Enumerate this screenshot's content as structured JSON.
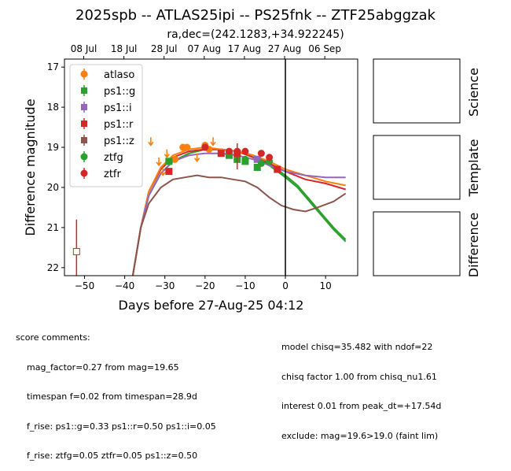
{
  "chart_data": {
    "type": "scatter",
    "title": "2025spb -- ATLAS25ipi -- PS25fnk -- ZTF25abggzak",
    "subtitle": "ra,dec=(242.1283,+34.922245)",
    "xlabel": "Days before 27-Aug-25 04:12",
    "ylabel": "Difference magnitude",
    "xlim": [
      -55,
      18
    ],
    "ylim": [
      22.2,
      16.8
    ],
    "y_inverted": true,
    "xticks": [
      -50,
      -40,
      -30,
      -20,
      -10,
      0,
      10
    ],
    "yticks": [
      17,
      18,
      19,
      20,
      21,
      22
    ],
    "top_axis_ticks": [
      {
        "x": -50.2,
        "label": "08 Jul"
      },
      {
        "x": -40.2,
        "label": "18 Jul"
      },
      {
        "x": -30.2,
        "label": "28 Jul"
      },
      {
        "x": -20.2,
        "label": "07 Aug"
      },
      {
        "x": -10.2,
        "label": "17 Aug"
      },
      {
        "x": -0.2,
        "label": "27 Aug"
      },
      {
        "x": 9.8,
        "label": "06 Sep"
      }
    ],
    "vline_x": 0,
    "grid": false,
    "legend_position": "upper-left",
    "series": [
      {
        "name": "atlaso",
        "color": "#ff7f0e",
        "marker": "circle",
        "points": [
          [
            -25.5,
            19.0
          ],
          [
            -24.5,
            19.0
          ],
          [
            -27.5,
            19.3
          ],
          [
            -20,
            18.95
          ],
          [
            -19,
            19.05
          ],
          [
            -14,
            19.1
          ]
        ],
        "upper_limits": [
          [
            -33.5,
            18.85
          ],
          [
            -31.5,
            19.35
          ],
          [
            -30.5,
            19.6
          ],
          [
            -29.5,
            19.15
          ],
          [
            -22,
            19.25
          ],
          [
            -18,
            18.85
          ]
        ]
      },
      {
        "name": "ps1::g",
        "color": "#2ca02c",
        "marker": "square",
        "points": [
          [
            -29,
            19.35
          ],
          [
            -14,
            19.2
          ],
          [
            -12,
            19.3
          ],
          [
            -10,
            19.35
          ],
          [
            -7,
            19.5
          ]
        ]
      },
      {
        "name": "ps1::i",
        "color": "#9467bd",
        "marker": "square",
        "points": [
          [
            -7,
            19.3
          ]
        ]
      },
      {
        "name": "ps1::r",
        "color": "#d62728",
        "marker": "square",
        "points": [
          [
            -29,
            19.6
          ],
          [
            -16,
            19.15
          ],
          [
            -12,
            19.15
          ],
          [
            -2,
            19.55
          ]
        ],
        "open_points": [
          [
            -52,
            21.6
          ]
        ],
        "error_bars": [
          [
            -52,
            20.8,
            22.2
          ],
          [
            -12,
            18.9,
            19.55
          ]
        ]
      },
      {
        "name": "ps1::z",
        "color": "#8c564b",
        "marker": "square",
        "points": []
      },
      {
        "name": "ztfg",
        "color": "#2ca02c",
        "marker": "circle",
        "points": [
          [
            -20,
            19.0
          ],
          [
            -14,
            19.15
          ],
          [
            -10,
            19.3
          ],
          [
            -6,
            19.4
          ],
          [
            -4,
            19.35
          ]
        ]
      },
      {
        "name": "ztfr",
        "color": "#d62728",
        "marker": "circle",
        "points": [
          [
            -20,
            19.0
          ],
          [
            -14,
            19.1
          ],
          [
            -12,
            19.1
          ],
          [
            -10,
            19.1
          ],
          [
            -6,
            19.15
          ],
          [
            -4,
            19.25
          ]
        ]
      }
    ],
    "model_curves": [
      {
        "color": "#2ca02c",
        "points": [
          [
            -38,
            22.2
          ],
          [
            -36,
            21.0
          ],
          [
            -34,
            20.2
          ],
          [
            -31,
            19.65
          ],
          [
            -28,
            19.35
          ],
          [
            -24,
            19.15
          ],
          [
            -20,
            19.05
          ],
          [
            -16,
            19.05
          ],
          [
            -12,
            19.1
          ],
          [
            -8,
            19.25
          ],
          [
            -4,
            19.45
          ],
          [
            0,
            19.75
          ],
          [
            3,
            20.0
          ],
          [
            6,
            20.35
          ],
          [
            9,
            20.7
          ],
          [
            12,
            21.05
          ],
          [
            15,
            21.35
          ]
        ]
      },
      {
        "color": "#2ca02c",
        "points": [
          [
            -38,
            22.2
          ],
          [
            -36,
            21.0
          ],
          [
            -34,
            20.2
          ],
          [
            -31,
            19.65
          ],
          [
            -28,
            19.35
          ],
          [
            -24,
            19.15
          ],
          [
            -20,
            19.05
          ],
          [
            -16,
            19.05
          ],
          [
            -12,
            19.1
          ],
          [
            -8,
            19.2
          ],
          [
            -4,
            19.4
          ],
          [
            0,
            19.7
          ],
          [
            3,
            19.95
          ],
          [
            6,
            20.3
          ],
          [
            9,
            20.65
          ],
          [
            12,
            21.0
          ],
          [
            15,
            21.3
          ]
        ]
      },
      {
        "color": "#d62728",
        "points": [
          [
            -38,
            22.2
          ],
          [
            -36,
            21.0
          ],
          [
            -34,
            20.1
          ],
          [
            -31,
            19.55
          ],
          [
            -28,
            19.25
          ],
          [
            -24,
            19.1
          ],
          [
            -20,
            19.05
          ],
          [
            -16,
            19.05
          ],
          [
            -12,
            19.1
          ],
          [
            -8,
            19.25
          ],
          [
            -4,
            19.4
          ],
          [
            0,
            19.6
          ],
          [
            5,
            19.8
          ],
          [
            10,
            19.9
          ],
          [
            15,
            20.05
          ]
        ]
      },
      {
        "color": "#ff7f0e",
        "points": [
          [
            -38,
            22.2
          ],
          [
            -36,
            21.0
          ],
          [
            -34,
            20.1
          ],
          [
            -31,
            19.5
          ],
          [
            -28,
            19.2
          ],
          [
            -24,
            19.05
          ],
          [
            -20,
            19.0
          ],
          [
            -16,
            19.05
          ],
          [
            -12,
            19.1
          ],
          [
            -8,
            19.2
          ],
          [
            -4,
            19.35
          ],
          [
            0,
            19.55
          ],
          [
            5,
            19.7
          ],
          [
            10,
            19.85
          ],
          [
            15,
            19.95
          ]
        ]
      },
      {
        "color": "#9467bd",
        "points": [
          [
            -38,
            22.2
          ],
          [
            -36,
            21.0
          ],
          [
            -34,
            20.2
          ],
          [
            -31,
            19.65
          ],
          [
            -28,
            19.35
          ],
          [
            -24,
            19.2
          ],
          [
            -20,
            19.15
          ],
          [
            -16,
            19.15
          ],
          [
            -12,
            19.2
          ],
          [
            -8,
            19.3
          ],
          [
            -4,
            19.45
          ],
          [
            0,
            19.6
          ],
          [
            5,
            19.7
          ],
          [
            10,
            19.75
          ],
          [
            15,
            19.75
          ]
        ]
      },
      {
        "color": "#8c564b",
        "points": [
          [
            -38,
            22.2
          ],
          [
            -36,
            21.0
          ],
          [
            -34,
            20.4
          ],
          [
            -31,
            20.0
          ],
          [
            -28,
            19.8
          ],
          [
            -25,
            19.75
          ],
          [
            -22,
            19.7
          ],
          [
            -19,
            19.75
          ],
          [
            -16,
            19.75
          ],
          [
            -13,
            19.8
          ],
          [
            -10,
            19.85
          ],
          [
            -7,
            20.0
          ],
          [
            -4,
            20.25
          ],
          [
            -1,
            20.45
          ],
          [
            2,
            20.55
          ],
          [
            5,
            20.6
          ],
          [
            8,
            20.5
          ],
          [
            12,
            20.35
          ],
          [
            15,
            20.15
          ]
        ]
      }
    ]
  },
  "stamps": {
    "science_label": "Science",
    "template_label": "Template",
    "difference_label": "Difference"
  },
  "comments": {
    "header": "score comments:",
    "left": [
      "mag_factor=0.27 from mag=19.65",
      "timespan f=0.02 from timespan=28.9d",
      "f_rise: ps1::g=0.33 ps1::r=0.50 ps1::i=0.05",
      "f_rise: ztfg=0.05 ztfr=0.05 ps1::z=0.50"
    ],
    "right": [
      "model chisq=35.482 with ndof=22",
      "chisq factor 1.00 from chisq_nu1.61",
      "interest 0.01 from peak_dt=+17.54d",
      "exclude: mag=19.6>19.0 (faint lim)"
    ]
  }
}
